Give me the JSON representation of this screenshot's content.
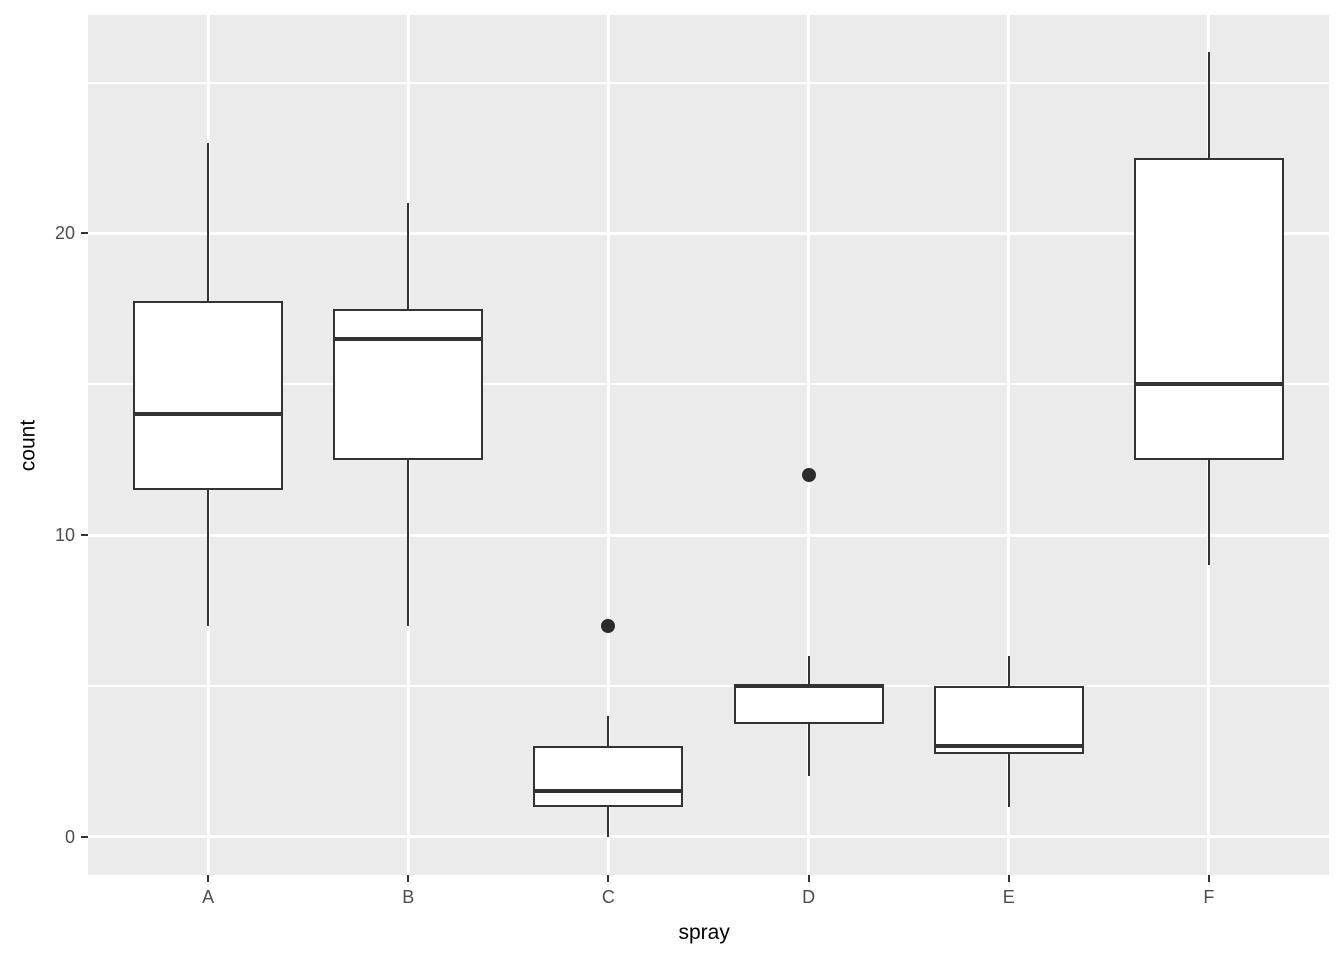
{
  "chart_data": {
    "type": "boxplot",
    "title": "",
    "xlabel": "spray",
    "ylabel": "count",
    "categories": [
      "A",
      "B",
      "C",
      "D",
      "E",
      "F"
    ],
    "y_ticks": [
      0,
      10,
      20
    ],
    "y_minor_gridlines": [
      5,
      15,
      25
    ],
    "ylim": [
      -1.27,
      27.24
    ],
    "grid": true,
    "legend_position": "none",
    "series": [
      {
        "category": "A",
        "whisker_low": 7,
        "q1": 11.5,
        "median": 14,
        "q3": 17.75,
        "whisker_high": 23,
        "outliers": []
      },
      {
        "category": "B",
        "whisker_low": 7,
        "q1": 12.5,
        "median": 16.5,
        "q3": 17.5,
        "whisker_high": 21,
        "outliers": []
      },
      {
        "category": "C",
        "whisker_low": 0,
        "q1": 1,
        "median": 1.5,
        "q3": 3,
        "whisker_high": 4,
        "outliers": [
          7
        ]
      },
      {
        "category": "D",
        "whisker_low": 2,
        "q1": 3.75,
        "median": 5,
        "q3": 5,
        "whisker_high": 6,
        "outliers": [
          12
        ]
      },
      {
        "category": "E",
        "whisker_low": 1,
        "q1": 2.75,
        "median": 3,
        "q3": 5,
        "whisker_high": 6,
        "outliers": []
      },
      {
        "category": "F",
        "whisker_low": 9,
        "q1": 12.5,
        "median": 15,
        "q3": 22.5,
        "whisker_high": 26,
        "outliers": []
      }
    ],
    "colors": {
      "panel_bg": "#EBEBEB",
      "gridline": "#FFFFFF",
      "box_stroke": "#333333",
      "box_fill": "#FFFFFF",
      "outlier_fill": "#2B2B2B",
      "tick_label": "#4D4D4D",
      "axis_title": "#000000"
    }
  }
}
